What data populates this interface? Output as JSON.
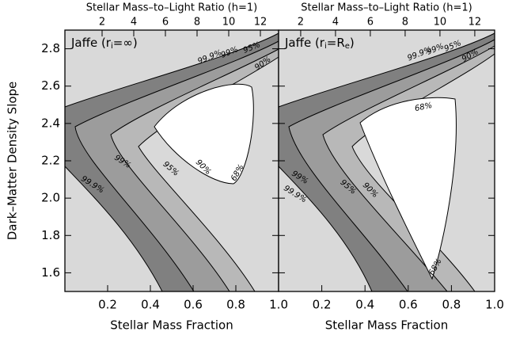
{
  "chart_data": [
    {
      "type": "contour",
      "title": [
        "Jaffe (r",
        "i",
        "=∞)"
      ],
      "x_label": "Stellar Mass Fraction",
      "y_label": "Dark–Matter Density Slope",
      "top_label": "Stellar Mass–to–Light Ratio (h=1)",
      "xlim": [
        0,
        1.0
      ],
      "xticks": [
        0.2,
        0.4,
        0.6,
        0.8,
        {
          "value": 1.0,
          "label": "1.0"
        }
      ],
      "ylim": [
        1.5,
        2.9
      ],
      "yticks": [
        1.6,
        1.8,
        {
          "value": 2.0,
          "label": "2.0"
        },
        2.2,
        2.4,
        2.6,
        2.8
      ],
      "toplim": [
        -0.35,
        13.15
      ],
      "topticks": [
        2,
        4,
        6,
        8,
        10,
        12
      ],
      "levels": [
        99.9,
        99,
        95,
        90,
        68
      ],
      "level_labels": [
        "99.9%",
        "99%",
        "95%",
        "90%",
        "68%"
      ]
    },
    {
      "type": "contour",
      "title": [
        "Jaffe (r",
        "i",
        "=R",
        "e",
        ")"
      ],
      "x_label": "Stellar Mass Fraction",
      "top_label": "Stellar Mass–to–Light Ratio (h=1)",
      "xlim": [
        0,
        1.0
      ],
      "xticks": [
        0.2,
        0.4,
        0.6,
        0.8,
        {
          "value": 1.0,
          "label": "1.0"
        }
      ],
      "ylim": [
        1.5,
        2.9
      ],
      "yticks": [
        1.6,
        1.8,
        {
          "value": 2.0,
          "label": "2.0"
        },
        2.2,
        2.4,
        2.6,
        2.8
      ],
      "toplim": [
        0.73,
        13.14
      ],
      "topticks": [
        2,
        4,
        6,
        8,
        10,
        12
      ],
      "levels": [
        99.9,
        99,
        95,
        90,
        68
      ],
      "level_labels": [
        "99.9%",
        "99%",
        "95%",
        "90%",
        "68%"
      ]
    }
  ]
}
